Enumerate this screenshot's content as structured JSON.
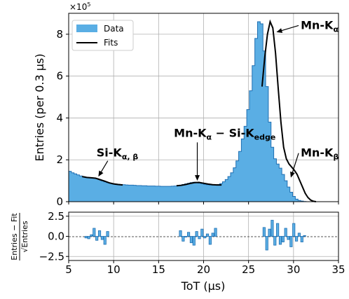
{
  "chart_data": [
    {
      "type": "area",
      "xlim": [
        5,
        35
      ],
      "ylim": [
        0,
        9
      ],
      "ylabel": "Entries (per 0.3 µs)",
      "y_multiplier_label": "×10",
      "y_multiplier_exp": "5",
      "grid": true,
      "legend_position": "top-left",
      "y_ticks": [
        0,
        2,
        4,
        6,
        8
      ],
      "series": [
        {
          "name": "Data",
          "style": "filled-step",
          "color": "#5aaee4",
          "edge_color": "#1f6fb2",
          "x": [
            5.0,
            5.3,
            5.6,
            5.9,
            6.2,
            6.5,
            6.8,
            7.1,
            7.4,
            7.7,
            8.0,
            8.3,
            8.6,
            8.9,
            9.2,
            9.5,
            9.8,
            10.1,
            10.4,
            10.7,
            11.0,
            11.3,
            11.6,
            11.9,
            12.2,
            12.5,
            12.8,
            13.1,
            13.4,
            13.7,
            14.0,
            14.3,
            14.6,
            14.9,
            15.2,
            15.5,
            15.8,
            16.1,
            16.4,
            16.7,
            17.0,
            17.3,
            17.6,
            17.9,
            18.2,
            18.5,
            18.8,
            19.1,
            19.4,
            19.7,
            20.0,
            20.3,
            20.6,
            20.9,
            21.2,
            21.5,
            21.8,
            22.1,
            22.4,
            22.7,
            23.0,
            23.3,
            23.6,
            23.9,
            24.2,
            24.5,
            24.8,
            25.1,
            25.4,
            25.7,
            26.0,
            26.3,
            26.6,
            26.9,
            27.2,
            27.5,
            27.8,
            28.1,
            28.4,
            28.7,
            29.0,
            29.3,
            29.6,
            29.9,
            30.2,
            30.5,
            30.8,
            31.1,
            31.4,
            31.7,
            32.0,
            32.3,
            32.6,
            32.9
          ],
          "values": [
            1.45,
            1.38,
            1.33,
            1.28,
            1.23,
            1.19,
            1.17,
            1.15,
            1.13,
            1.12,
            1.1,
            1.06,
            1.0,
            0.95,
            0.91,
            0.88,
            0.85,
            0.84,
            0.83,
            0.82,
            0.81,
            0.8,
            0.79,
            0.79,
            0.78,
            0.77,
            0.77,
            0.76,
            0.76,
            0.75,
            0.75,
            0.75,
            0.74,
            0.74,
            0.73,
            0.73,
            0.73,
            0.73,
            0.74,
            0.75,
            0.77,
            0.79,
            0.82,
            0.85,
            0.88,
            0.91,
            0.93,
            0.92,
            0.89,
            0.86,
            0.83,
            0.81,
            0.8,
            0.79,
            0.8,
            0.82,
            0.86,
            0.95,
            1.06,
            1.2,
            1.38,
            1.62,
            1.95,
            2.4,
            3.0,
            3.6,
            4.4,
            5.3,
            6.5,
            7.8,
            8.6,
            8.5,
            7.2,
            5.5,
            3.8,
            2.6,
            2.05,
            1.8,
            1.6,
            1.3,
            1.0,
            0.7,
            0.45,
            0.25,
            0.12,
            0.06,
            0.03,
            0.01,
            0.0,
            0.0,
            0.0,
            0.0,
            0.0,
            0.0
          ]
        },
        {
          "name": "Fits",
          "style": "line",
          "color": "#000000",
          "segments": [
            {
              "x": [
                6.5,
                7.0,
                7.5,
                8.0,
                8.5,
                9.0,
                9.5,
                10.0,
                10.5,
                11.0
              ],
              "y": [
                1.2,
                1.16,
                1.14,
                1.12,
                1.05,
                0.98,
                0.9,
                0.85,
                0.82,
                0.8
              ]
            },
            {
              "x": [
                17.0,
                17.5,
                18.0,
                18.5,
                19.0,
                19.5,
                20.0,
                20.5,
                21.0,
                21.5,
                22.0
              ],
              "y": [
                0.76,
                0.78,
                0.82,
                0.87,
                0.91,
                0.92,
                0.88,
                0.84,
                0.81,
                0.8,
                0.8
              ]
            },
            {
              "x": [
                26.5,
                26.8,
                27.1,
                27.4,
                27.7,
                28.0,
                28.3,
                28.6,
                28.9,
                29.2,
                29.5,
                29.8,
                30.1,
                30.4,
                30.7,
                31.0,
                31.3,
                31.6,
                31.9,
                32.2,
                32.5
              ],
              "y": [
                5.5,
                6.9,
                8.0,
                8.6,
                8.3,
                7.1,
                5.4,
                3.8,
                2.6,
                2.05,
                1.8,
                1.65,
                1.5,
                1.3,
                1.0,
                0.7,
                0.4,
                0.2,
                0.08,
                0.02,
                0.0
              ]
            }
          ]
        }
      ],
      "annotations": [
        {
          "text_main": "Si-K",
          "text_sub": "α, β",
          "x": 8.3,
          "y": 1.2,
          "text_x": 8.1,
          "text_y": 2.15
        },
        {
          "text_main": "Mn-K",
          "text_sub": "α",
          "text_mid": " − Si-K",
          "text_sub2": "edge",
          "x": 19.3,
          "y": 1.0,
          "text_x": 16.7,
          "text_y": 3.1
        },
        {
          "text_main": "Mn-K",
          "text_sub": "α",
          "x": 28.1,
          "y": 8.1,
          "text_x": 30.8,
          "text_y": 8.25
        },
        {
          "text_main": "Mn-K",
          "text_sub": "β",
          "x": 29.7,
          "y": 1.15,
          "text_x": 30.8,
          "text_y": 2.15
        }
      ]
    },
    {
      "type": "bar",
      "xlim": [
        5,
        35
      ],
      "ylim": [
        -3.0,
        3.0
      ],
      "xlabel": "ToT (µs)",
      "ylabel_top": "Entries − Fit",
      "ylabel_bottom": "√Entries",
      "grid": true,
      "x_ticks": [
        5,
        10,
        15,
        20,
        25,
        30,
        35
      ],
      "y_ticks": [
        -2.5,
        0.0,
        2.5
      ],
      "y_tick_labels": [
        "−2.5",
        "0.0",
        "2.5"
      ],
      "color": "#5aaee4",
      "edge_color": "#1f6fb2",
      "bin_width": 0.3,
      "x": [
        6.8,
        7.1,
        7.4,
        7.7,
        8.0,
        8.3,
        8.6,
        8.9,
        9.2,
        9.5,
        17.3,
        17.6,
        17.9,
        18.2,
        18.5,
        18.8,
        19.1,
        19.4,
        19.7,
        20.0,
        20.3,
        20.6,
        20.9,
        21.2,
        26.6,
        26.9,
        27.2,
        27.5,
        27.8,
        28.1,
        28.4,
        28.7,
        29.0,
        29.3,
        29.6,
        29.9,
        30.2,
        30.5,
        30.8,
        31.1,
        31.4,
        31.7,
        32.0
      ],
      "values": [
        -0.2,
        -0.3,
        0.2,
        1.0,
        -0.5,
        0.7,
        -0.4,
        -1.0,
        0.6,
        0.0,
        0.7,
        -0.6,
        -0.1,
        0.5,
        -0.8,
        -1.1,
        0.6,
        -0.3,
        0.9,
        -0.2,
        0.3,
        -1.0,
        0.4,
        1.0,
        1.1,
        -1.7,
        0.9,
        2.0,
        -1.1,
        1.6,
        -1.0,
        -0.7,
        1.0,
        -0.4,
        -1.3,
        1.6,
        -0.6,
        0.4,
        -0.7,
        0.1,
        0.0,
        0.0,
        0.0
      ]
    }
  ]
}
